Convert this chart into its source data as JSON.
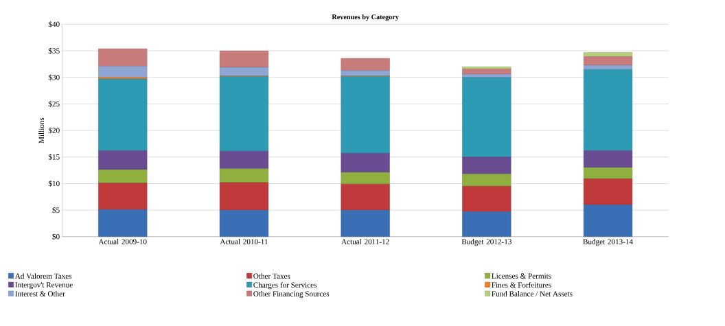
{
  "chart_data": {
    "type": "bar",
    "title": "Revenues by Category",
    "ylabel": "Millions",
    "stacked": true,
    "categories": [
      "Actual 2009-10",
      "Actual 2010-11",
      "Actual 2011-12",
      "Budget 2012-13",
      "Budget 2013-14"
    ],
    "series": [
      {
        "name": "Ad Valorem Taxes",
        "color": "#3a6eb5",
        "values": [
          5.1,
          5.0,
          5.0,
          4.7,
          6.0
        ]
      },
      {
        "name": "Other Taxes",
        "color": "#c0393b",
        "values": [
          5.0,
          5.2,
          4.9,
          4.8,
          4.9
        ]
      },
      {
        "name": "Licenses & Permits",
        "color": "#8fb03e",
        "values": [
          2.5,
          2.6,
          2.2,
          2.3,
          2.1
        ]
      },
      {
        "name": "Intergov't Revenue",
        "color": "#6a4c93",
        "values": [
          3.6,
          3.3,
          3.6,
          3.2,
          3.2
        ]
      },
      {
        "name": "Charges for Services",
        "color": "#2e9bb5",
        "values": [
          13.5,
          14.1,
          14.5,
          15.0,
          15.3
        ]
      },
      {
        "name": "Fines & Forfeitures",
        "color": "#f07f1e",
        "values": [
          0.3,
          0.1,
          0.1,
          0.0,
          0.0
        ]
      },
      {
        "name": "Interest & Other",
        "color": "#8fa6d4",
        "values": [
          2.1,
          1.6,
          1.0,
          0.6,
          0.8
        ]
      },
      {
        "name": "Other Financing Sources",
        "color": "#c87b7b",
        "values": [
          3.3,
          3.1,
          2.3,
          1.0,
          1.6
        ]
      },
      {
        "name": "Fund Balance / Net Assets",
        "color": "#b5cf7a",
        "values": [
          0.0,
          0.0,
          0.0,
          0.4,
          0.8
        ]
      }
    ],
    "ylim": [
      0,
      40
    ],
    "yticks": [
      {
        "value": 0,
        "label": "$0"
      },
      {
        "value": 5,
        "label": "$5"
      },
      {
        "value": 10,
        "label": "$10"
      },
      {
        "value": 15,
        "label": "$15"
      },
      {
        "value": 20,
        "label": "$20"
      },
      {
        "value": 25,
        "label": "$25"
      },
      {
        "value": 30,
        "label": "$30"
      },
      {
        "value": 35,
        "label": "$35"
      },
      {
        "value": 40,
        "label": "$40"
      }
    ],
    "grid": "y",
    "legend": "bottom"
  }
}
